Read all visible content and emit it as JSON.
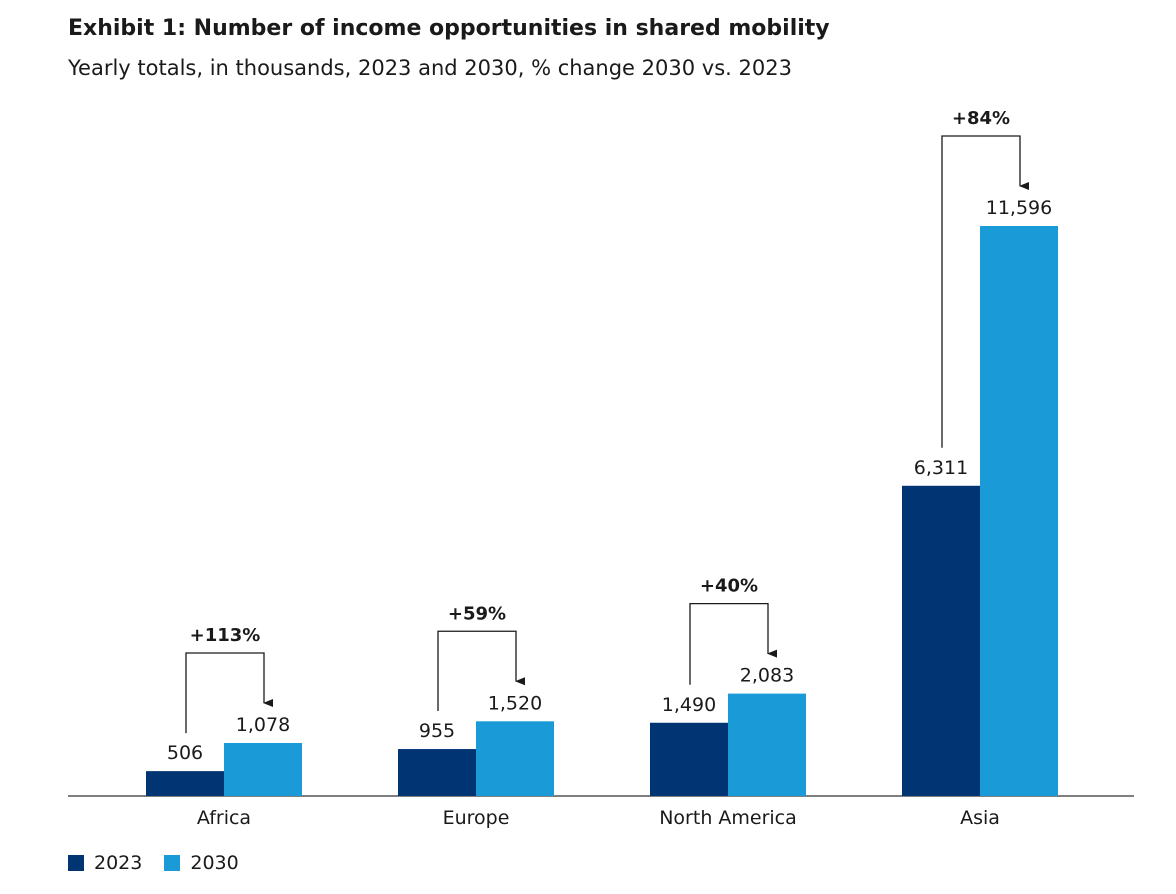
{
  "title": "Exhibit 1: Number of income opportunities in shared mobility",
  "subtitle": "Yearly totals, in thousands, 2023 and 2030, % change 2030 vs. 2023",
  "chart_data": {
    "type": "bar",
    "title": "Exhibit 1: Number of income opportunities in shared mobility",
    "subtitle": "Yearly totals, in thousands, 2023 and 2030, % change 2030 vs. 2023",
    "categories": [
      "Africa",
      "Europe",
      "North America",
      "Asia"
    ],
    "series": [
      {
        "name": "2023",
        "color": "#003473",
        "values": [
          506,
          955,
          1490,
          6311
        ],
        "labels": [
          "506",
          "955",
          "1,490",
          "6,311"
        ]
      },
      {
        "name": "2030",
        "color": "#1a9bd7",
        "values": [
          1078,
          1520,
          2083,
          11596
        ],
        "labels": [
          "1,078",
          "1,520",
          "2,083",
          "11,596"
        ]
      }
    ],
    "annotations": [
      "+113%",
      "+59%",
      "+40%",
      "+84%"
    ],
    "ylim": [
      0,
      11596
    ],
    "xlabel": "",
    "ylabel": "",
    "grid": false,
    "legend": "bottom-left"
  }
}
